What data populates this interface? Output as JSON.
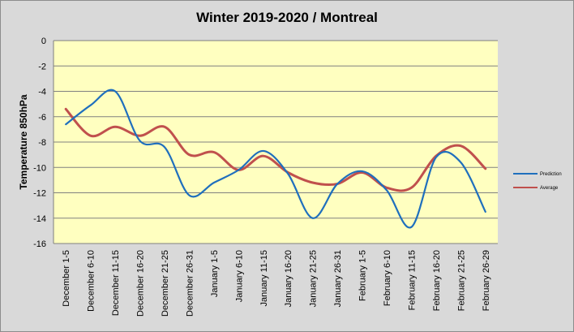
{
  "chart_data": {
    "type": "line",
    "title": "Winter 2019-2020 / Montreal",
    "xlabel": "",
    "ylabel": "Temperature 850hPa",
    "ylim": [
      -16,
      0
    ],
    "yticks": [
      0,
      -2,
      -4,
      -6,
      -8,
      -10,
      -12,
      -14,
      -16
    ],
    "grid": true,
    "legend_position": "right",
    "background_color": "#ffffc0",
    "categories": [
      "December 1-5",
      "December 6-10",
      "December 11-15",
      "December 16-20",
      "December 21-25",
      "December 26-31",
      "January 1-5",
      "January 6-10",
      "January 11-15",
      "January 16-20",
      "January 21-25",
      "January 26-31",
      "February 1-5",
      "February 6-10",
      "February 11-15",
      "February 16-20",
      "February 21-25",
      "February 26-29"
    ],
    "series": [
      {
        "name": "Prediction",
        "color": "#1f6fbd",
        "values": [
          -6.6,
          -5.1,
          -4.0,
          -7.9,
          -8.4,
          -12.2,
          -11.2,
          -10.2,
          -8.7,
          -10.5,
          -14.0,
          -11.3,
          -10.3,
          -11.8,
          -14.7,
          -9.2,
          -9.6,
          -13.5
        ]
      },
      {
        "name": "Average",
        "color": "#c0504d",
        "values": [
          -5.4,
          -7.5,
          -6.8,
          -7.5,
          -6.8,
          -9.0,
          -8.8,
          -10.2,
          -9.1,
          -10.4,
          -11.2,
          -11.3,
          -10.4,
          -11.6,
          -11.6,
          -9.1,
          -8.3,
          -10.1
        ]
      }
    ]
  }
}
